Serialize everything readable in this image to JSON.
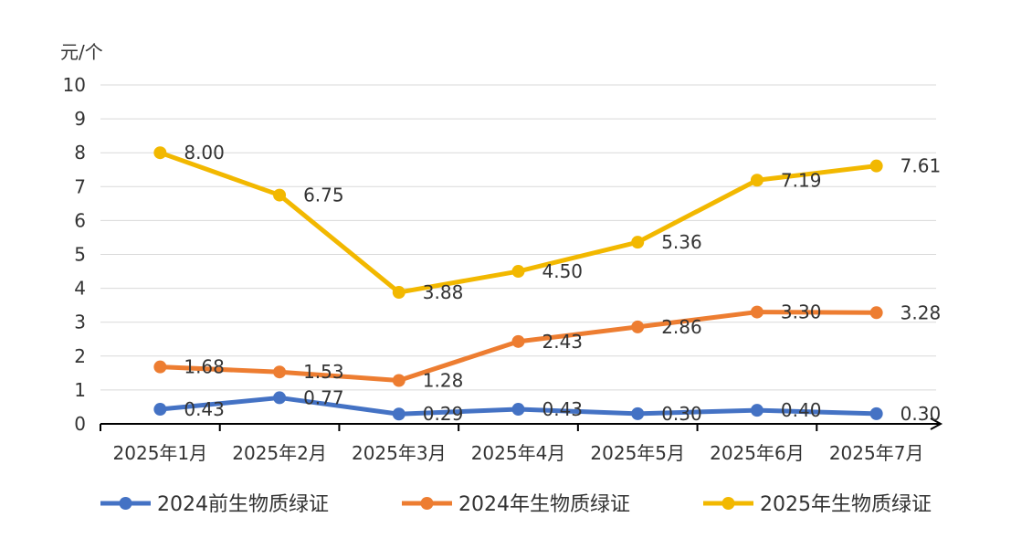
{
  "chart_data": {
    "type": "line",
    "title": "",
    "xlabel": "",
    "ylabel": "",
    "unit": "元/个",
    "ylim": [
      0,
      10
    ],
    "yticks": [
      0,
      1,
      2,
      3,
      4,
      5,
      6,
      7,
      8,
      9,
      10
    ],
    "grid": true,
    "legend_position": "bottom",
    "categories": [
      "2025年1月",
      "2025年2月",
      "2025年3月",
      "2025年4月",
      "2025年5月",
      "2025年6月",
      "2025年7月"
    ],
    "series": [
      {
        "name": "2024前生物质绿证",
        "color": "#4472C4",
        "values": [
          0.43,
          0.77,
          0.29,
          0.43,
          0.3,
          0.4,
          0.3
        ],
        "labels": [
          "0.43",
          "0.77",
          "0.29",
          "0.43",
          "0.30",
          "0.40",
          "0.30"
        ]
      },
      {
        "name": "2024年生物质绿证",
        "color": "#ED7D31",
        "values": [
          1.68,
          1.53,
          1.28,
          2.43,
          2.86,
          3.3,
          3.28
        ],
        "labels": [
          "1.68",
          "1.53",
          "1.28",
          "2.43",
          "2.86",
          "3.30",
          "3.28"
        ]
      },
      {
        "name": "2025年生物质绿证",
        "color": "#F2B800",
        "values": [
          8.0,
          6.75,
          3.88,
          4.5,
          5.36,
          7.19,
          7.61
        ],
        "labels": [
          "8.00",
          "6.75",
          "3.88",
          "4.50",
          "5.36",
          "7.19",
          "7.61"
        ]
      }
    ]
  }
}
